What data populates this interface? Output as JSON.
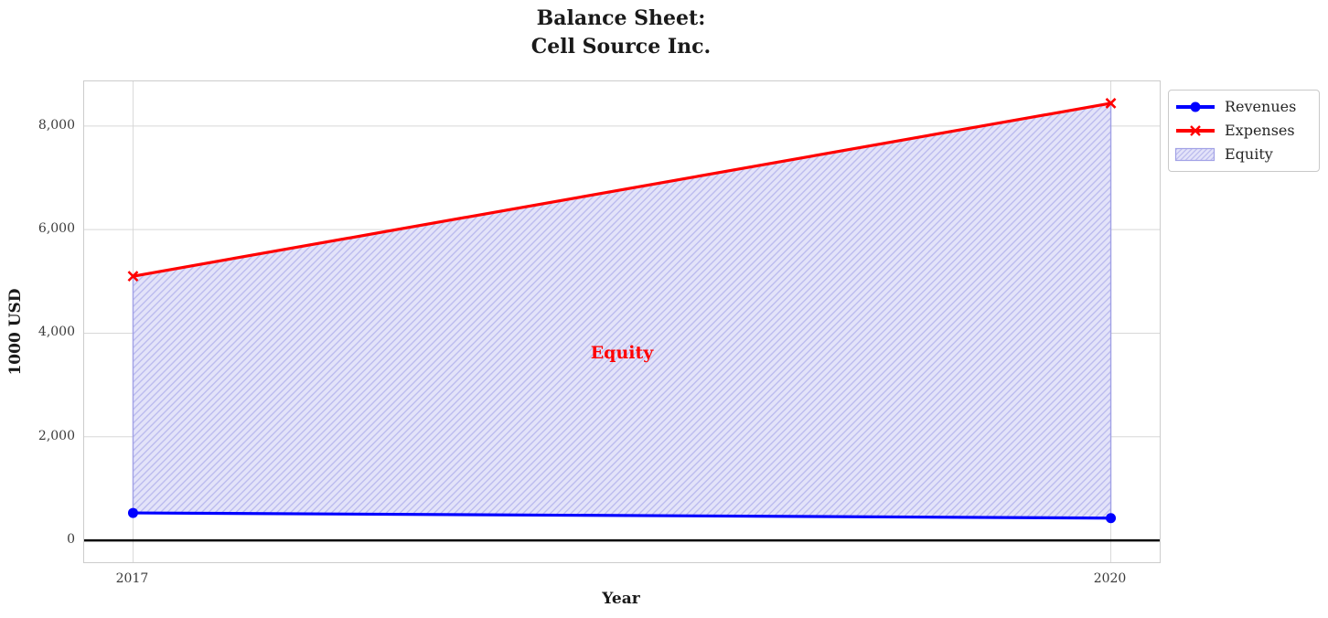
{
  "chart_data": {
    "type": "line",
    "title": "Balance Sheet:\nCell Source Inc.",
    "xlabel": "Year",
    "ylabel": "1000 USD",
    "x": [
      2017,
      2020
    ],
    "series": [
      {
        "name": "Revenues",
        "color": "#0000ff",
        "marker": "circle",
        "values": [
          530,
          430
        ]
      },
      {
        "name": "Expenses",
        "color": "#ff0000",
        "marker": "x",
        "values": [
          5100,
          8440
        ]
      }
    ],
    "area": {
      "name": "Equity",
      "between": [
        "Revenues",
        "Expenses"
      ],
      "fill_color": "#e3e3f9",
      "hatch_color": "#bcbcee",
      "edge_color": "#a2a2e6",
      "hatch_style": "///",
      "annotation": {
        "text": "Equity",
        "x": 2018.5,
        "y": 3620,
        "color": "#ff0000"
      }
    },
    "xlim": [
      2016.85,
      2020.15
    ],
    "ylim": [
      -422,
      8862
    ],
    "yticks": [
      {
        "value": 0,
        "label": "0"
      },
      {
        "value": 2000,
        "label": "2,000"
      },
      {
        "value": 4000,
        "label": "4,000"
      },
      {
        "value": 6000,
        "label": "6,000"
      },
      {
        "value": 8000,
        "label": "8,000"
      }
    ],
    "xticks": [
      {
        "value": 2017,
        "label": "2017"
      },
      {
        "value": 2020,
        "label": "2020"
      }
    ],
    "zero_line": {
      "y": 0,
      "color": "#000000"
    },
    "grid": true,
    "grid_color": "#d8d8d8",
    "legend_position": "outside-upper-right"
  }
}
